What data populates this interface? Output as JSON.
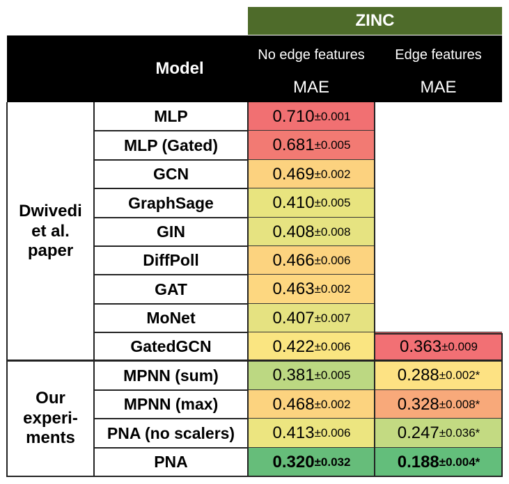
{
  "header": {
    "dataset": "ZINC",
    "model_label": "Model",
    "col1_label": "No edge features",
    "col2_label": "Edge features",
    "metric1": "MAE",
    "metric2": "MAE"
  },
  "groups": {
    "g1": "Dwivedi et al. paper",
    "g2": "Our experi- ments"
  },
  "rows": [
    {
      "model": "MLP",
      "no_edge": {
        "v": "0.710",
        "pm": "±0.001",
        "color": "#f17072"
      },
      "edge": null
    },
    {
      "model": "MLP (Gated)",
      "no_edge": {
        "v": "0.681",
        "pm": "±0.005",
        "color": "#f27a73"
      },
      "edge": null
    },
    {
      "model": "GCN",
      "no_edge": {
        "v": "0.469",
        "pm": "±0.002",
        "color": "#fcd27f"
      },
      "edge": null
    },
    {
      "model": "GraphSage",
      "no_edge": {
        "v": "0.410",
        "pm": "±0.005",
        "color": "#e8e47f"
      },
      "edge": null
    },
    {
      "model": "GIN",
      "no_edge": {
        "v": "0.408",
        "pm": "±0.008",
        "color": "#e6e381"
      },
      "edge": null
    },
    {
      "model": "DiffPoll",
      "no_edge": {
        "v": "0.466",
        "pm": "±0.006",
        "color": "#fcd37f"
      },
      "edge": null
    },
    {
      "model": "GAT",
      "no_edge": {
        "v": "0.463",
        "pm": "±0.002",
        "color": "#fdd780"
      },
      "edge": null
    },
    {
      "model": "MoNet",
      "no_edge": {
        "v": "0.407",
        "pm": "±0.007",
        "color": "#e5e281"
      },
      "edge": null
    },
    {
      "model": "GatedGCN",
      "no_edge": {
        "v": "0.422",
        "pm": "±0.006",
        "color": "#fae581"
      },
      "edge": {
        "v": "0.363",
        "pm": "±0.009",
        "color": "#f27074"
      }
    },
    {
      "model": "MPNN (sum)",
      "no_edge": {
        "v": "0.381",
        "pm": "±0.005",
        "color": "#bcd882"
      },
      "edge": {
        "v": "0.288",
        "pm": "±0.002*",
        "color": "#fde283"
      }
    },
    {
      "model": "MPNN (max)",
      "no_edge": {
        "v": "0.468",
        "pm": "±0.002",
        "color": "#fcd37f"
      },
      "edge": {
        "v": "0.328",
        "pm": "±0.008*",
        "color": "#f8a97a"
      }
    },
    {
      "model": "PNA (no scalers)",
      "no_edge": {
        "v": "0.413",
        "pm": "±0.006",
        "color": "#ece580"
      },
      "edge": {
        "v": "0.247",
        "pm": "±0.036*",
        "color": "#c3da82"
      }
    },
    {
      "model": "PNA",
      "no_edge": {
        "v": "0.320",
        "pm": "±0.032",
        "color": "#66bd7a",
        "bold": true
      },
      "edge": {
        "v": "0.188",
        "pm": "±0.004*",
        "color": "#63be7b",
        "bold": true
      }
    }
  ]
}
